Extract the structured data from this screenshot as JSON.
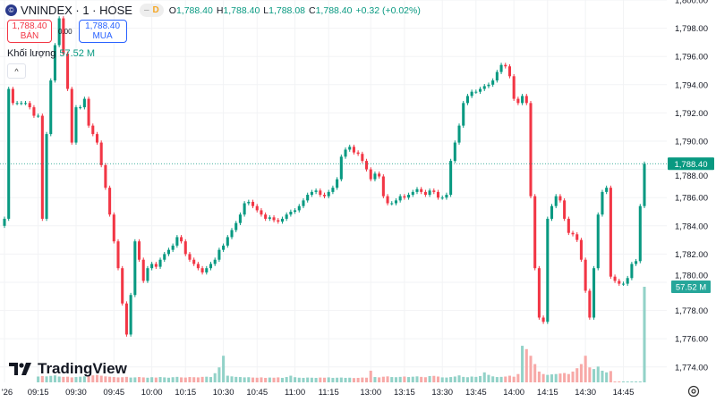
{
  "header": {
    "symbol": "VNINDEX · 1 · HOSE",
    "logo_glyph": "©",
    "pill_dash": "–",
    "pill_label": "D",
    "open_label": "O",
    "open": "1,788.40",
    "high_label": "H",
    "high": "1,788.40",
    "low_label": "L",
    "low": "1,788.08",
    "close_label": "C",
    "close": "1,788.40",
    "change": "+0.32 (+0.02%)"
  },
  "trade": {
    "sell_price": "1,788.40",
    "sell_label": "BÁN",
    "spread": "0.00",
    "buy_price": "1,788.40",
    "buy_label": "MUA"
  },
  "volume_legend": {
    "label": "Khối lượng",
    "value": "57.52 M"
  },
  "collapse_glyph": "^",
  "brand": "TradingView",
  "price_tag": "1,788.40",
  "volume_tag": "57.52 M",
  "colors": {
    "up": "#089981",
    "down": "#f23645",
    "up_vol": "#92d2c8",
    "down_vol": "#f7a9a7"
  },
  "chart_data": {
    "type": "candlestick",
    "title": "VNINDEX · 1 · HOSE",
    "ylim": [
      1772.6,
      1800
    ],
    "y_ticks": [
      "1,774.00",
      "1,776.00",
      "1,778.00",
      "1,780.00",
      "1,782.00",
      "1,784.00",
      "1,786.00",
      "1,788.00",
      "1,790.00",
      "1,792.00",
      "1,794.00",
      "1,796.00",
      "1,798.00",
      "1,800.00"
    ],
    "y_tick_values": [
      1774,
      1776,
      1778,
      1780,
      1782,
      1784,
      1786,
      1788,
      1790,
      1792,
      1794,
      1796,
      1798,
      1800
    ],
    "x_ticks": [
      "'26",
      "09:15",
      "09:30",
      "09:45",
      "10:00",
      "10:15",
      "10:30",
      "10:45",
      "11:00",
      "11:15",
      "13:00",
      "13:15",
      "13:30",
      "13:45",
      "14:00",
      "14:15",
      "14:30",
      "14:45"
    ],
    "x_tick_index": [
      0,
      8,
      17,
      26,
      35,
      43,
      52,
      60,
      69,
      77,
      87,
      95,
      104,
      112,
      121,
      129,
      138,
      147
    ],
    "first_open": 1784.0,
    "closes": [
      1784.5,
      1793.7,
      1792.7,
      1792.7,
      1792.7,
      1792.7,
      1792.4,
      1791.8,
      1791.8,
      1784.5,
      1790.5,
      1794.3,
      1796.8,
      1798.7,
      1796.2,
      1793.7,
      1789.9,
      1792.4,
      1792.4,
      1793.0,
      1791.1,
      1790.5,
      1789.9,
      1788.3,
      1786.7,
      1784.8,
      1782.9,
      1781.0,
      1778.5,
      1776.3,
      1779.1,
      1782.9,
      1781.6,
      1780.1,
      1781.0,
      1781.3,
      1781.1,
      1781.6,
      1782.0,
      1782.3,
      1782.6,
      1783.2,
      1782.9,
      1782.0,
      1781.6,
      1781.3,
      1781.0,
      1780.7,
      1781.0,
      1781.3,
      1781.6,
      1782.3,
      1782.6,
      1783.2,
      1783.7,
      1784.2,
      1784.8,
      1785.6,
      1785.7,
      1785.4,
      1785.1,
      1784.8,
      1784.5,
      1784.6,
      1784.4,
      1784.3,
      1784.5,
      1784.8,
      1785.0,
      1785.1,
      1785.4,
      1785.8,
      1786.2,
      1786.4,
      1786.5,
      1786.2,
      1786.1,
      1786.4,
      1786.7,
      1787.3,
      1788.9,
      1789.4,
      1789.6,
      1789.2,
      1789.1,
      1788.6,
      1788.0,
      1787.3,
      1787.7,
      1787.5,
      1786.1,
      1785.6,
      1785.6,
      1785.8,
      1786.1,
      1786.0,
      1786.2,
      1786.4,
      1786.6,
      1786.4,
      1786.2,
      1786.5,
      1786.4,
      1786.0,
      1786.0,
      1786.2,
      1788.6,
      1789.9,
      1791.1,
      1792.7,
      1793.2,
      1793.5,
      1793.5,
      1793.7,
      1793.9,
      1794.0,
      1794.3,
      1794.9,
      1795.4,
      1795.3,
      1794.6,
      1793.0,
      1792.7,
      1793.2,
      1792.7,
      1786.1,
      1781.0,
      1777.5,
      1777.2,
      1784.5,
      1785.4,
      1786.1,
      1785.8,
      1784.5,
      1783.5,
      1783.4,
      1783.0,
      1781.6,
      1779.4,
      1777.5,
      1781.0,
      1784.8,
      1786.4,
      1786.7,
      1780.4,
      1780.1,
      1779.9,
      1779.9,
      1780.3,
      1781.3,
      1781.5,
      1785.4,
      1788.4
    ],
    "volume_m": [
      0,
      0,
      0,
      0,
      0,
      0,
      0,
      0,
      3.5,
      3.8,
      3.6,
      3.9,
      4.2,
      3.5,
      3.3,
      3.4,
      3.0,
      3.2,
      3.4,
      3.6,
      3.8,
      4.2,
      4.5,
      4.0,
      3.6,
      3.4,
      3.2,
      3.0,
      3.1,
      3.3,
      2.9,
      3.0,
      3.2,
      3.0,
      2.8,
      3.1,
      2.9,
      3.2,
      3.0,
      2.8,
      3.1,
      3.3,
      3.0,
      2.9,
      3.2,
      3.1,
      3.0,
      3.3,
      3.4,
      3.2,
      5.5,
      9.0,
      16.0,
      4.0,
      3.6,
      3.3,
      3.2,
      3.0,
      3.1,
      2.9,
      2.8,
      3.0,
      2.7,
      2.9,
      2.8,
      3.0,
      2.7,
      3.2,
      4.0,
      3.1,
      2.8,
      2.7,
      2.9,
      2.8,
      2.7,
      2.9,
      2.8,
      3.0,
      2.7,
      2.8,
      2.9,
      2.7,
      2.8,
      2.6,
      2.7,
      2.9,
      2.8,
      7.0,
      3.2,
      3.0,
      3.4,
      3.6,
      3.2,
      3.1,
      3.3,
      3.5,
      3.2,
      3.4,
      3.6,
      3.3,
      3.1,
      3.8,
      3.9,
      3.5,
      3.0,
      2.9,
      3.2,
      3.5,
      4.2,
      3.3,
      3.1,
      3.5,
      3.3,
      3.8,
      6.0,
      4.5,
      3.6,
      3.2,
      3.3,
      3.5,
      4.0,
      3.4,
      5.0,
      22.0,
      20.0,
      16.0,
      11.0,
      6.5,
      5.0,
      4.5,
      4.8,
      5.0,
      5.3,
      5.6,
      5.0,
      6.5,
      8.5,
      11.0,
      16.0,
      9.0,
      8.0,
      9.5,
      7.0,
      6.0,
      6.8,
      0.2,
      0.2,
      0.2,
      0.2,
      0.2,
      0.2,
      0.2,
      57.52
    ]
  }
}
